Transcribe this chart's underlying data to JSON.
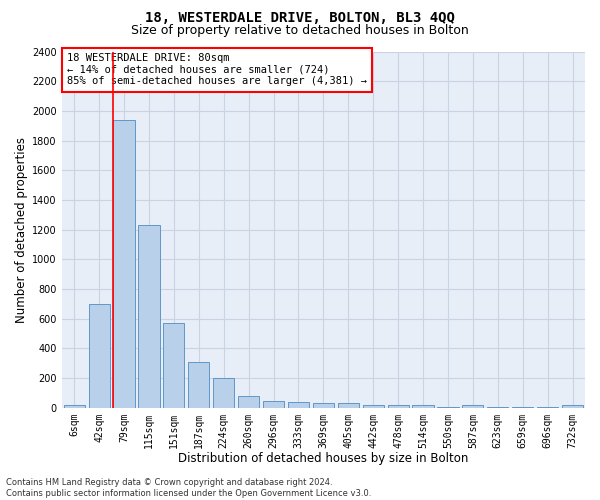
{
  "title": "18, WESTERDALE DRIVE, BOLTON, BL3 4QQ",
  "subtitle": "Size of property relative to detached houses in Bolton",
  "xlabel": "Distribution of detached houses by size in Bolton",
  "ylabel": "Number of detached properties",
  "categories": [
    "6sqm",
    "42sqm",
    "79sqm",
    "115sqm",
    "151sqm",
    "187sqm",
    "224sqm",
    "260sqm",
    "296sqm",
    "333sqm",
    "369sqm",
    "405sqm",
    "442sqm",
    "478sqm",
    "514sqm",
    "550sqm",
    "587sqm",
    "623sqm",
    "659sqm",
    "696sqm",
    "732sqm"
  ],
  "values": [
    15,
    700,
    1940,
    1230,
    570,
    305,
    200,
    80,
    45,
    37,
    32,
    30,
    20,
    20,
    18,
    5,
    15,
    3,
    2,
    2,
    15
  ],
  "bar_color": "#b8d0ea",
  "bar_edge_color": "#6096c8",
  "grid_color": "#c8d4e4",
  "background_color": "#e8eef8",
  "annotation_box_text": "18 WESTERDALE DRIVE: 80sqm\n← 14% of detached houses are smaller (724)\n85% of semi-detached houses are larger (4,381) →",
  "vline_x": 2.0,
  "ylim": [
    0,
    2400
  ],
  "yticks": [
    0,
    200,
    400,
    600,
    800,
    1000,
    1200,
    1400,
    1600,
    1800,
    2000,
    2200,
    2400
  ],
  "footnote": "Contains HM Land Registry data © Crown copyright and database right 2024.\nContains public sector information licensed under the Open Government Licence v3.0.",
  "title_fontsize": 10,
  "subtitle_fontsize": 9,
  "xlabel_fontsize": 8.5,
  "ylabel_fontsize": 8.5,
  "tick_fontsize": 7,
  "annot_fontsize": 7.5,
  "footnote_fontsize": 6
}
